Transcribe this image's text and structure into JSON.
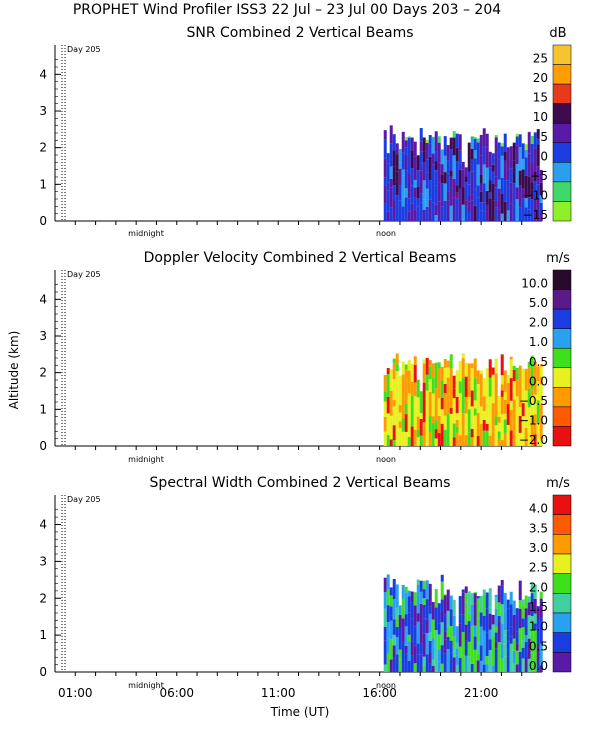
{
  "chart_data": {
    "type": "heatmap",
    "title": "PROPHET Wind Profiler ISS3  22 Jul – 23 Jul 00 Days 203 – 204",
    "xlabel": "Time (UT)",
    "ylabel": "Altitude (km)",
    "x_range_hours_ut": [
      0,
      24
    ],
    "data_start_hour_ut": 16.2,
    "y_range_km": [
      0,
      4.8
    ],
    "y_ticks": [
      "0",
      "1",
      "2",
      "3",
      "4"
    ],
    "x_ticks": [
      "01:00",
      "06:00",
      "11:00",
      "16:00",
      "21:00"
    ],
    "x_tick_hours": [
      1,
      6,
      11,
      16,
      21
    ],
    "markers": {
      "day": "Day 205",
      "midnight": "midnight",
      "noon": "noon"
    },
    "panels": [
      {
        "id": "snr",
        "title": "SNR Combined 2 Vertical Beams",
        "unit": "dB",
        "scale_labels": [
          "25",
          "20",
          "15",
          "10",
          "5",
          "0",
          "−5",
          "−10",
          "−15"
        ],
        "scale_colors": [
          "#f5c430",
          "#ff9e00",
          "#e83a1a",
          "#3d0b4d",
          "#5a1aa8",
          "#1a3ce0",
          "#2a9ff0",
          "#40d868",
          "#8ef02a"
        ],
        "echo_top_km": 2.3
      },
      {
        "id": "doppler",
        "title": "Doppler Velocity Combined 2 Vertical Beams",
        "unit": "m/s",
        "scale_labels": [
          "10.0",
          "5.0",
          "2.0",
          "1.0",
          "0.5",
          "0.0",
          "−0.5",
          "−1.0",
          "−2.0"
        ],
        "scale_colors": [
          "#2a0a2a",
          "#5a1a8a",
          "#1a3ce0",
          "#2aa0f0",
          "#3ee01e",
          "#e8f020",
          "#ff9a00",
          "#ff5a00",
          "#e81010"
        ],
        "echo_top_km": 2.3
      },
      {
        "id": "width",
        "title": "Spectral Width Combined 2 Vertical Beams",
        "unit": "m/s",
        "scale_labels": [
          "4.0",
          "3.5",
          "3.0",
          "2.5",
          "2.0",
          "1.5",
          "1.0",
          "0.5",
          "0.0"
        ],
        "scale_colors": [
          "#e81010",
          "#ff5a00",
          "#ff9a00",
          "#e8f020",
          "#3ee01e",
          "#40d0a0",
          "#2aa0f0",
          "#1a3ce0",
          "#5a1aa8"
        ],
        "echo_top_km": 2.3
      }
    ]
  }
}
